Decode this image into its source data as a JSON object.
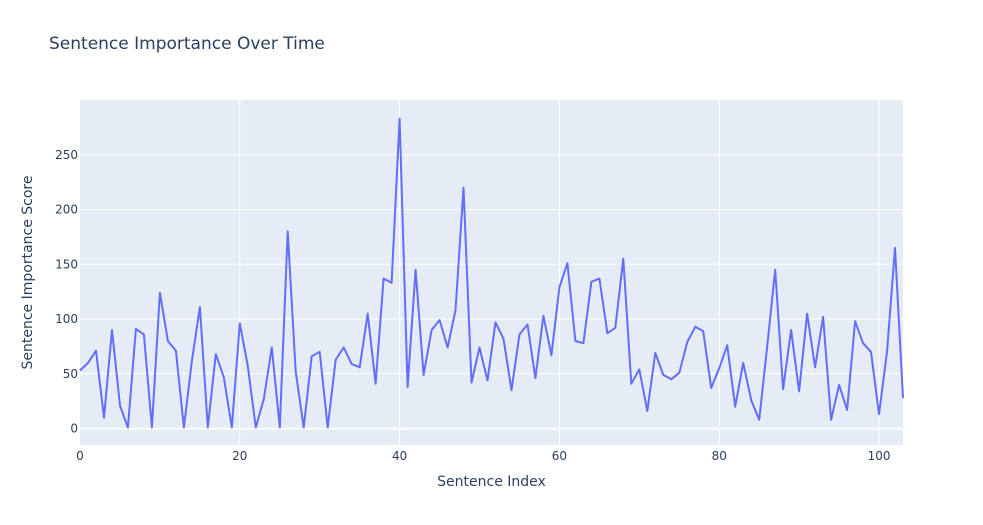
{
  "chart_data": {
    "type": "line",
    "title": "Sentence Importance Over Time",
    "xlabel": "Sentence Index",
    "ylabel": "Sentence Importance Score",
    "xlim": [
      0,
      103
    ],
    "ylim": [
      -15,
      300
    ],
    "xticks": [
      0,
      20,
      40,
      60,
      80,
      100
    ],
    "yticks": [
      0,
      50,
      100,
      150,
      200,
      250
    ],
    "grid": true,
    "line_color": "#636efa",
    "plot_bgcolor": "#e5ecf6",
    "series": [
      {
        "values": [
          53,
          60,
          71,
          10,
          90,
          21,
          1,
          91,
          86,
          1,
          124,
          80,
          71,
          1,
          62,
          111,
          1,
          68,
          47,
          1,
          96,
          57,
          1,
          27,
          74,
          1,
          180,
          52,
          1,
          66,
          70,
          1,
          63,
          74,
          59,
          56,
          105,
          41,
          137,
          133,
          283,
          38,
          145,
          49,
          90,
          99,
          74,
          108,
          220,
          42,
          74,
          44,
          97,
          82,
          35,
          86,
          95,
          46,
          103,
          67,
          129,
          151,
          80,
          78,
          134,
          137,
          87,
          92,
          155,
          41,
          54,
          16,
          69,
          49,
          45,
          51,
          79,
          93,
          89,
          37,
          55,
          76,
          20,
          60,
          26,
          8,
          75,
          145,
          36,
          90,
          34,
          105,
          56,
          102,
          8,
          40,
          17,
          98,
          78,
          70,
          13,
          70,
          165,
          28
        ]
      }
    ]
  }
}
